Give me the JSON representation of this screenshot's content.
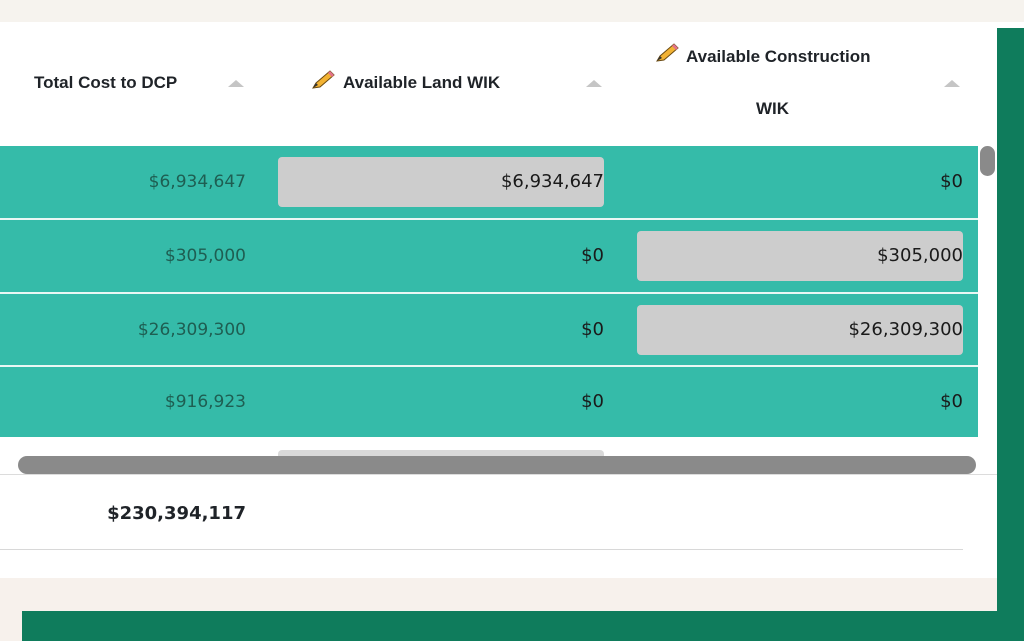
{
  "table": {
    "columns": [
      {
        "label": "Total Cost to DCP",
        "editable": false
      },
      {
        "label": "Available Land WIK",
        "editable": true
      },
      {
        "label_line1": "Available Construction",
        "label_line2": "WIK",
        "editable": true
      }
    ],
    "rows": [
      {
        "total": "$6,934,647",
        "land": "$6,934,647",
        "construction": "$0"
      },
      {
        "total": "$305,000",
        "land": "$0",
        "construction": "$305,000"
      },
      {
        "total": "$26,309,300",
        "land": "$0",
        "construction": "$26,309,300"
      },
      {
        "total": "$916,923",
        "land": "$0",
        "construction": "$0"
      }
    ],
    "footer": {
      "total": "$230,394,117"
    }
  },
  "icons": {
    "edit": "pencil-icon",
    "sort": "sort-ascending-icon"
  },
  "colors": {
    "row_highlight": "#35bba9",
    "frame_accent": "#0f7c5c",
    "editable_cell": "#cdcdcd"
  }
}
